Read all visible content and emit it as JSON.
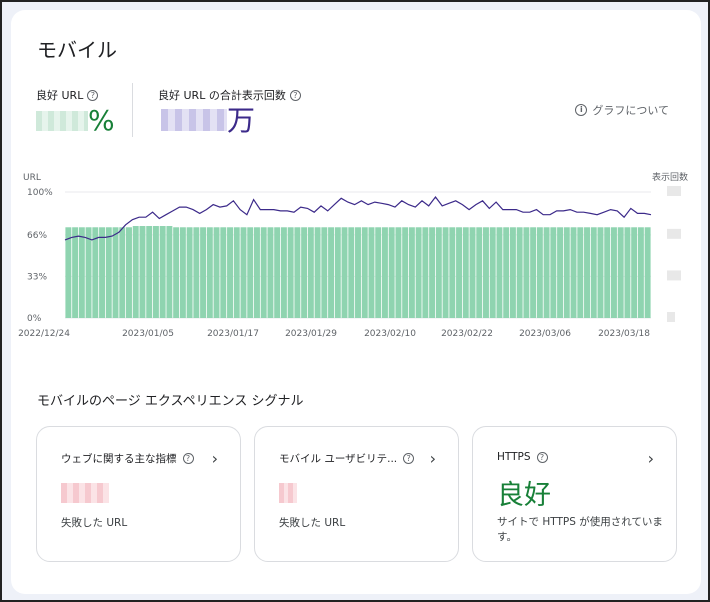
{
  "title": "モバイル",
  "metrics": {
    "good_url_label": "良好 URL",
    "good_url_unit": "%",
    "impressions_label": "良好 URL の合計表示回数",
    "impressions_unit": "万"
  },
  "about_link": "グラフについて",
  "chart_data": {
    "type": "bar+line",
    "left_axis_label": "URL",
    "right_axis_label": "表示回数",
    "y_ticks": [
      "100%",
      "66%",
      "33%",
      "0%"
    ],
    "x_ticks": [
      "2022/12/24",
      "2023/01/05",
      "2023/01/17",
      "2023/01/29",
      "2023/02/10",
      "2023/02/22",
      "2023/03/06",
      "2023/03/18"
    ],
    "bar_values": [
      72,
      72,
      72,
      72,
      72,
      72,
      72,
      72,
      72,
      72,
      73,
      73,
      73,
      73,
      73,
      73,
      72,
      72,
      72,
      72,
      72,
      72,
      72,
      72,
      72,
      72,
      72,
      72,
      72,
      72,
      72,
      72,
      72,
      72,
      72,
      72,
      72,
      72,
      72,
      72,
      72,
      72,
      72,
      72,
      72,
      72,
      72,
      72,
      72,
      72,
      72,
      72,
      72,
      72,
      72,
      72,
      72,
      72,
      72,
      72,
      72,
      72,
      72,
      72,
      72,
      72,
      72,
      72,
      72,
      72,
      72,
      72,
      72,
      72,
      72,
      72,
      72,
      72,
      72,
      72,
      72,
      72,
      72,
      72,
      72,
      72,
      72
    ],
    "line_values": [
      62,
      64,
      65,
      64,
      62,
      64,
      64,
      65,
      68,
      74,
      78,
      80,
      80,
      84,
      79,
      82,
      85,
      88,
      88,
      86,
      83,
      86,
      90,
      88,
      89,
      93,
      86,
      82,
      94,
      86,
      86,
      86,
      85,
      85,
      84,
      88,
      87,
      84,
      89,
      85,
      90,
      95,
      92,
      90,
      93,
      90,
      92,
      91,
      90,
      88,
      93,
      90,
      88,
      93,
      89,
      96,
      89,
      91,
      93,
      90,
      86,
      90,
      93,
      87,
      92,
      86,
      86,
      86,
      84,
      84,
      86,
      82,
      82,
      85,
      85,
      86,
      84,
      84,
      83,
      82,
      84,
      86,
      85,
      80,
      87,
      83,
      83,
      82
    ]
  },
  "experience_section_title": "モバイルのページ エクスペリエンス シグナル",
  "cards": [
    {
      "title": "ウェブに関する主な指標",
      "caption": "失敗した URL"
    },
    {
      "title": "モバイル ユーザビリテ...",
      "caption": "失敗した URL"
    },
    {
      "title": "HTTPS",
      "status": "良好",
      "caption": "サイトで HTTPS が使用されています。"
    }
  ],
  "colors": {
    "bar": "#8fd4b0",
    "line": "#3c2a8a",
    "good": "#188038"
  },
  "icons": {
    "help": "help-circle-icon",
    "info": "info-circle-icon",
    "chevron": "chevron-right-icon"
  }
}
